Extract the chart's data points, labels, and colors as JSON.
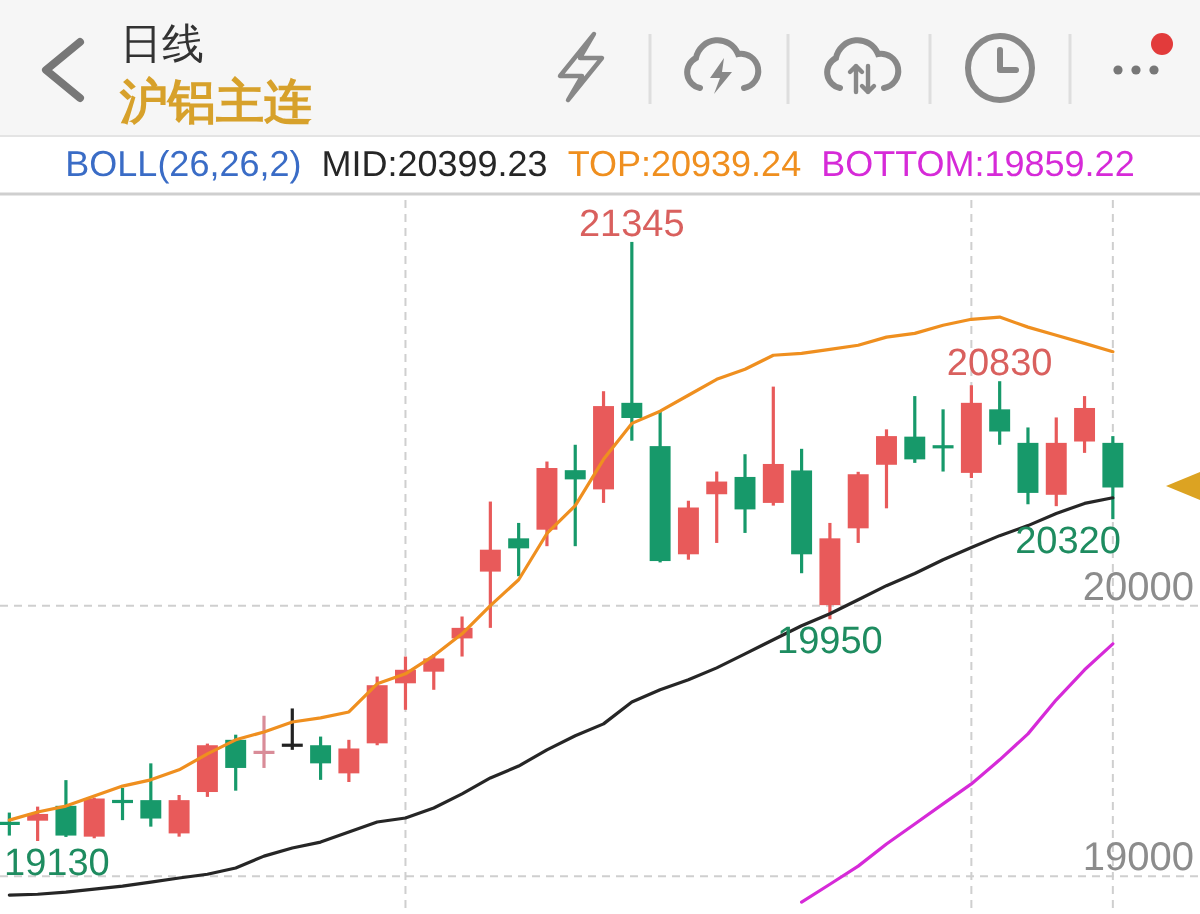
{
  "chart_data": {
    "type": "candlestick",
    "title": "日线",
    "subtitle": "沪铝主连",
    "legend_title": "BOLL(26,26,2)",
    "legend": "top",
    "categories": [
      null,
      null,
      null,
      null,
      null,
      null,
      null,
      null,
      null,
      null,
      null,
      null,
      null,
      null,
      null,
      null,
      null,
      null,
      null,
      null,
      null,
      null,
      null,
      null,
      null,
      null,
      null,
      null,
      null,
      null,
      null,
      null,
      null,
      null,
      null,
      null,
      null,
      null,
      null,
      null
    ],
    "ohlc": [
      [
        19200,
        19235,
        19150,
        19190
      ],
      [
        19205,
        19257,
        19130,
        19230
      ],
      [
        19260,
        19355,
        19145,
        19150
      ],
      [
        19146,
        19290,
        19140,
        19287
      ],
      [
        19280,
        19326,
        19207,
        19272
      ],
      [
        19281,
        19417,
        19183,
        19213
      ],
      [
        19158,
        19300,
        19146,
        19281
      ],
      [
        19311,
        19490,
        19293,
        19484
      ],
      [
        19504,
        19523,
        19316,
        19400
      ],
      [
        19455,
        19593,
        19400,
        19460
      ],
      [
        19484,
        19620,
        19467,
        19484
      ],
      [
        19484,
        19516,
        19356,
        19417
      ],
      [
        19380,
        19504,
        19348,
        19472
      ],
      [
        19491,
        19738,
        19484,
        19706
      ],
      [
        19713,
        19812,
        19615,
        19763
      ],
      [
        19756,
        19820,
        19689,
        19805
      ],
      [
        19879,
        19960,
        19812,
        19918
      ],
      [
        20126,
        20385,
        19918,
        20207
      ],
      [
        20249,
        20306,
        20109,
        20212
      ],
      [
        20281,
        20533,
        20220,
        20509
      ],
      [
        20501,
        20595,
        20220,
        20467
      ],
      [
        20430,
        20793,
        20380,
        20738
      ],
      [
        20750,
        21345,
        20610,
        20694
      ],
      [
        20590,
        20719,
        20160,
        20165
      ],
      [
        20190,
        20388,
        20170,
        20363
      ],
      [
        20412,
        20496,
        20232,
        20459
      ],
      [
        20476,
        20560,
        20269,
        20356
      ],
      [
        20380,
        20810,
        20370,
        20524
      ],
      [
        20500,
        20580,
        20120,
        20190
      ],
      [
        20002,
        20306,
        19950,
        20249
      ],
      [
        20286,
        20495,
        20232,
        20486
      ],
      [
        20521,
        20652,
        20360,
        20627
      ],
      [
        20625,
        20775,
        20528,
        20541
      ],
      [
        20590,
        20726,
        20496,
        20585
      ],
      [
        20491,
        20815,
        20472,
        20750
      ],
      [
        20726,
        20830,
        20595,
        20644
      ],
      [
        20602,
        20659,
        20375,
        20417
      ],
      [
        20410,
        20696,
        20368,
        20602
      ],
      [
        20607,
        20775,
        20565,
        20731
      ],
      [
        20602,
        20627,
        20320,
        20437
      ]
    ],
    "colors": [
      "#17996a",
      "#e85a5a",
      "#17996a",
      "#e85a5a",
      "#17996a",
      "#17996a",
      "#e85a5a",
      "#e85a5a",
      "#17996a",
      "#d98c98",
      "#222222",
      "#17996a",
      "#e85a5a",
      "#e85a5a",
      "#e85a5a",
      "#e85a5a",
      "#e85a5a",
      "#e85a5a",
      "#17996a",
      "#e85a5a",
      "#17996a",
      "#e85a5a",
      "#17996a",
      "#17996a",
      "#e85a5a",
      "#e85a5a",
      "#17996a",
      "#e85a5a",
      "#17996a",
      "#e85a5a",
      "#e85a5a",
      "#e85a5a",
      "#17996a",
      "#17996a",
      "#e85a5a",
      "#17996a",
      "#17996a",
      "#e85a5a",
      "#e85a5a",
      "#17996a"
    ],
    "series": [
      {
        "type": "line",
        "name": "MID:20399.23",
        "color": "#262626",
        "values": [
          18930,
          18933,
          18941,
          18952,
          18963,
          18978,
          18993,
          19007,
          19030,
          19074,
          19104,
          19126,
          19163,
          19200,
          19215,
          19252,
          19304,
          19363,
          19407,
          19467,
          19519,
          19563,
          19644,
          19689,
          19726,
          19770,
          19822,
          19874,
          19926,
          19970,
          20022,
          20074,
          20119,
          20170,
          20215,
          20259,
          20296,
          20341,
          20378,
          20399
        ]
      },
      {
        "type": "line",
        "name": "TOP:20939.24",
        "color": "#ef8f1f",
        "values": [
          19207,
          19237,
          19259,
          19296,
          19333,
          19356,
          19393,
          19452,
          19504,
          19533,
          19570,
          19585,
          19607,
          19711,
          19748,
          19815,
          19896,
          20000,
          20096,
          20267,
          20370,
          20541,
          20674,
          20719,
          20778,
          20837,
          20874,
          20926,
          20933,
          20948,
          20963,
          20993,
          21007,
          21037,
          21059,
          21067,
          21030,
          21000,
          20970,
          20939
        ]
      },
      {
        "type": "line",
        "name": "BOTTOM:19859.22",
        "color": "#d62ad8",
        "values": [
          null,
          null,
          null,
          null,
          null,
          null,
          null,
          null,
          null,
          null,
          null,
          null,
          null,
          null,
          null,
          null,
          null,
          null,
          null,
          null,
          null,
          null,
          null,
          null,
          null,
          null,
          null,
          null,
          18904,
          18970,
          19037,
          19119,
          19193,
          19267,
          19341,
          19430,
          19526,
          19652,
          19763,
          19859
        ]
      }
    ],
    "ylim": [
      18860,
      21500
    ],
    "yticks": [
      19000,
      20000
    ],
    "grid": true,
    "annotations": [
      {
        "text": "21345",
        "y": 21345
      },
      {
        "text": "20830",
        "y": 20830
      },
      {
        "text": "19950",
        "y": 19950
      },
      {
        "text": "20320",
        "y": 20320
      },
      {
        "text": "19130",
        "y": 19130
      }
    ]
  }
}
